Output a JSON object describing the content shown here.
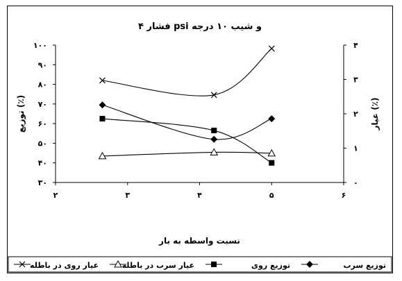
{
  "chart_data": {
    "type": "line",
    "title": "فشار ۴ psi و شیب ۱۰ درجه",
    "xlabel": "نسبت واسطه به بار",
    "ylabel_left": "توزیع (٪)",
    "ylabel_right": "عیار (٪)",
    "x_ticks": [
      "۲",
      "۳",
      "۴",
      "۵",
      "۶"
    ],
    "x_tick_values": [
      2,
      3,
      4,
      5,
      6
    ],
    "y_left_ticks": [
      "۳۰",
      "۴۰",
      "۵۰",
      "۶۰",
      "۷۰",
      "۸۰",
      "۹۰",
      "۱۰۰"
    ],
    "y_left_tick_values": [
      30,
      40,
      50,
      60,
      70,
      80,
      90,
      100
    ],
    "y_right_ticks": [
      "۰",
      "۱",
      "۲",
      "۳",
      "۴"
    ],
    "y_right_tick_values": [
      0,
      1,
      2,
      3,
      4
    ],
    "xlim": [
      2,
      6
    ],
    "ylim_left": [
      30,
      100
    ],
    "ylim_right": [
      0,
      4
    ],
    "grid": false,
    "legend_position": "bottom",
    "x": [
      2.65,
      4.2,
      5.0
    ],
    "series": [
      {
        "name": "توزیع سرب",
        "axis": "left",
        "marker": "diamond",
        "values": [
          69.5,
          52,
          62.5
        ]
      },
      {
        "name": "توزیع روی",
        "axis": "left",
        "marker": "square",
        "values": [
          62.5,
          56.5,
          40
        ]
      },
      {
        "name": "عیار سرب در باطله",
        "axis": "right",
        "marker": "triangle",
        "values": [
          0.77,
          0.88,
          0.85
        ]
      },
      {
        "name": "عیار روی در باطله",
        "axis": "right",
        "marker": "x",
        "values": [
          2.97,
          2.55,
          3.9
        ]
      }
    ]
  }
}
